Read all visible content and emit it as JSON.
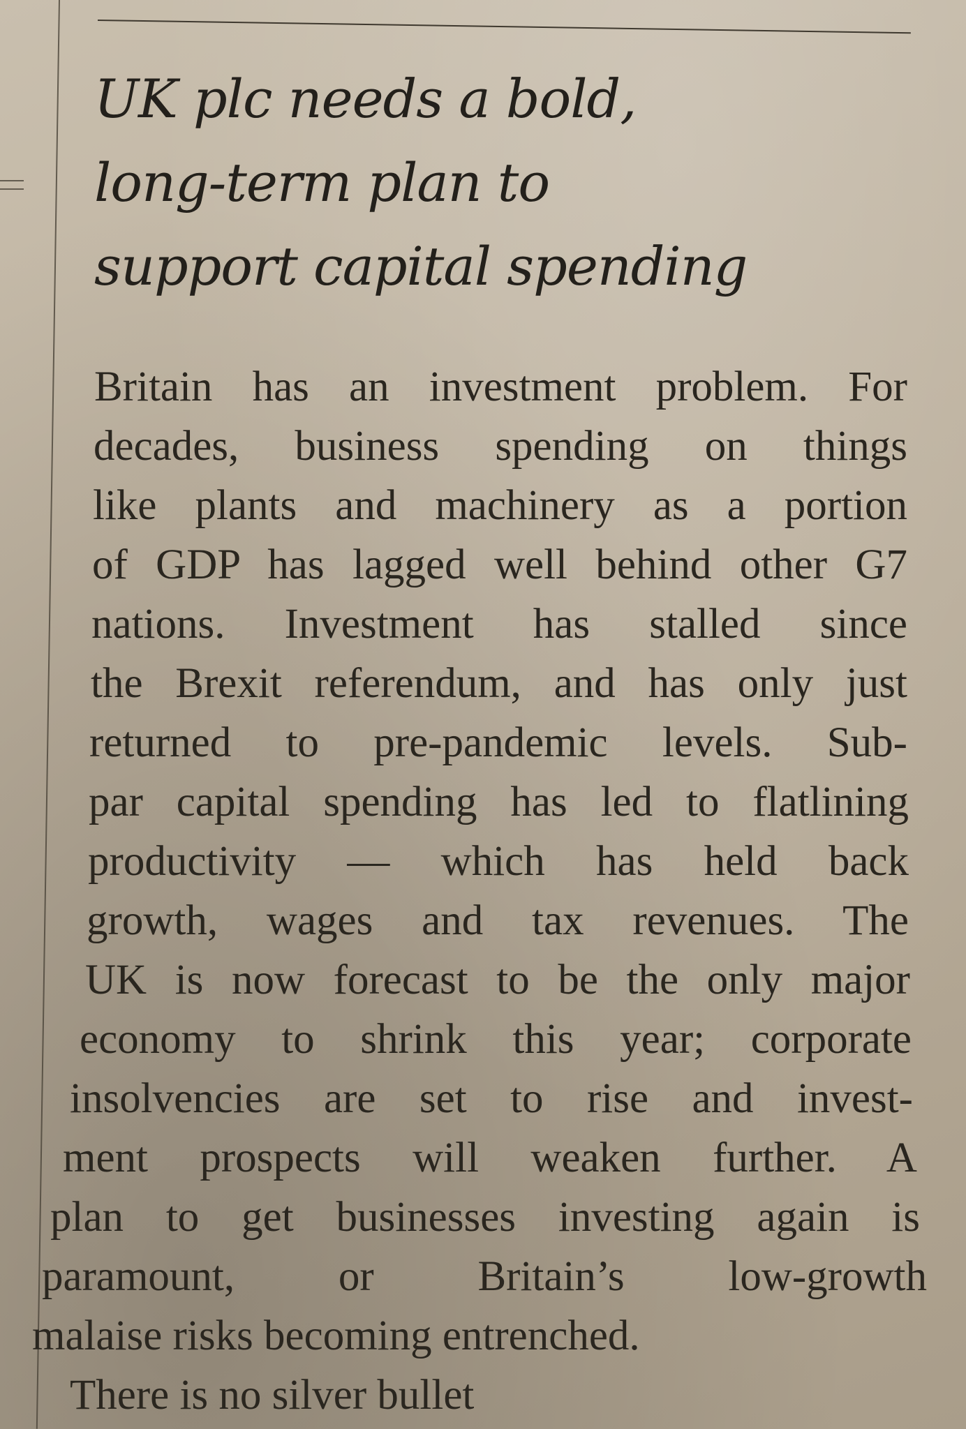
{
  "article": {
    "headline_lines": [
      "UK plc needs a bold,",
      "long-term plan to",
      "support capital spending"
    ],
    "body_lines": [
      "Britain has an investment problem. For",
      "decades, business spending on things",
      "like plants and machinery as a portion",
      "of GDP has lagged well behind other G7",
      "nations. Investment has stalled since",
      "the Brexit referendum, and has only just",
      "returned to pre-pandemic levels. Sub-",
      "par capital spending has led to flatlining",
      "productivity — which has held back",
      "growth, wages and tax revenues. The",
      "UK is now forecast to be the only major",
      "economy to shrink this year; corporate",
      "insolvencies are set to rise and invest-",
      "ment prospects will weaken further. A",
      "plan to get businesses investing again is",
      "paramount, or Britain’s low-growth",
      "malaise risks becoming entrenched.",
      "There is no silver bullet"
    ]
  }
}
